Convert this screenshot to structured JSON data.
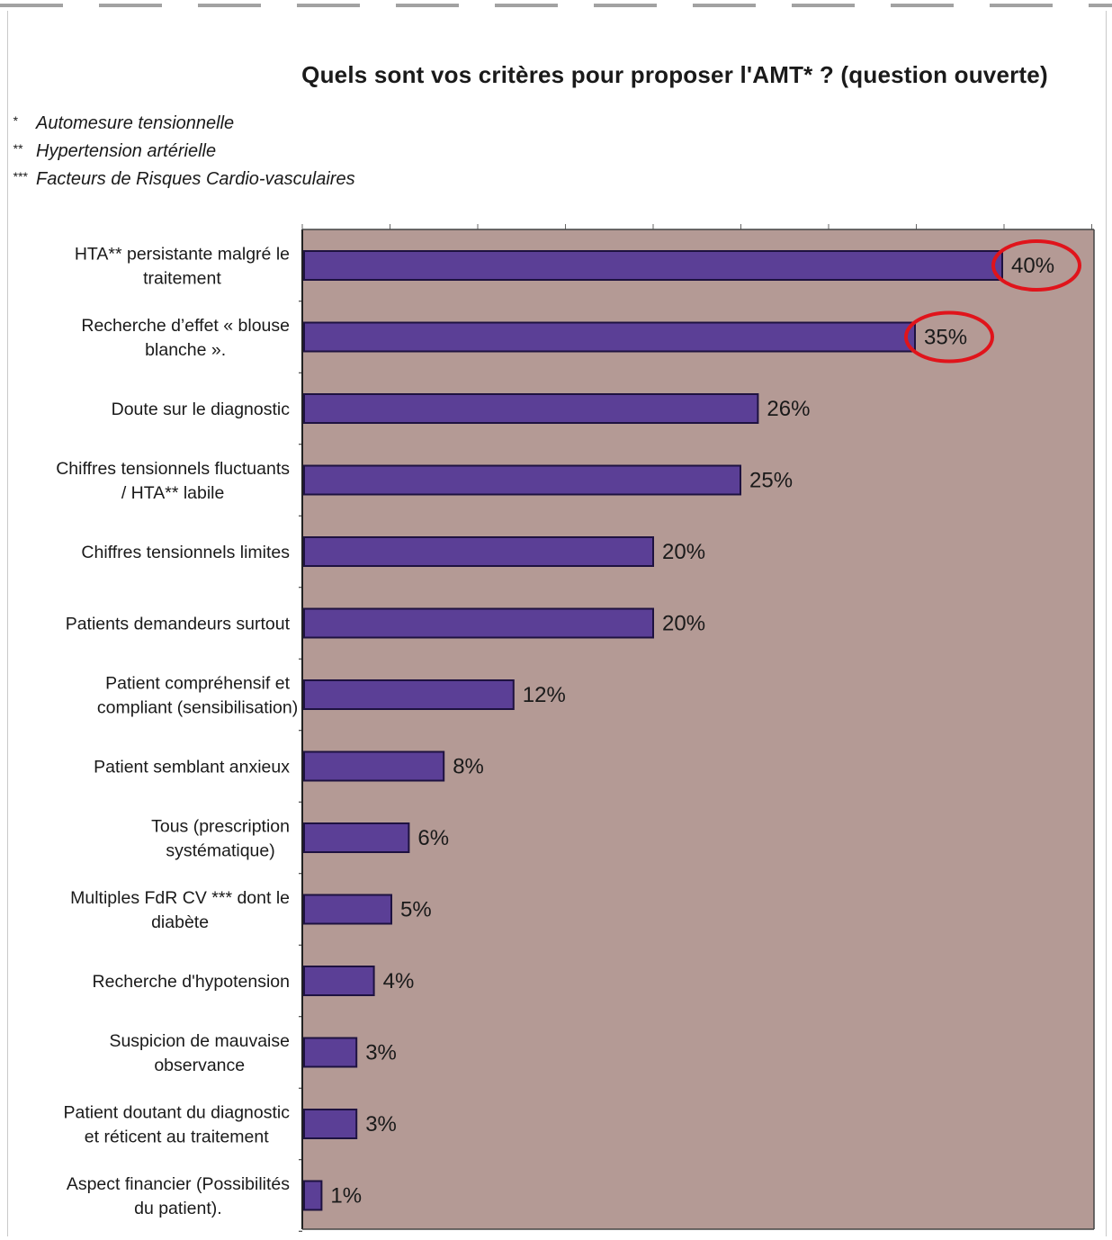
{
  "title": "Quels sont vos critères pour proposer l'AMT* ? (question ouverte)",
  "footnotes": [
    {
      "mark": "*",
      "text": "Automesure tensionnelle"
    },
    {
      "mark": "**",
      "text": "Hypertension artérielle"
    },
    {
      "mark": "***",
      "text": "Facteurs de Risques Cardio-vasculaires"
    }
  ],
  "colors": {
    "bar": "#5b3f96",
    "bar_edge": "#1e1240",
    "plot_background": "#b49a95",
    "highlight_circle": "#e0141b"
  },
  "chart_data": {
    "type": "bar",
    "orientation": "horizontal",
    "unit": "%",
    "xlim": [
      0,
      45
    ],
    "grid": false,
    "legend": "none",
    "categories": [
      [
        "HTA** persistante malgré le",
        "traitement"
      ],
      [
        "Recherche d’effet « blouse",
        "blanche »."
      ],
      [
        "Doute sur le diagnostic"
      ],
      [
        "Chiffres tensionnels fluctuants",
        "/ HTA** labile"
      ],
      [
        "Chiffres tensionnels limites"
      ],
      [
        "Patients demandeurs surtout"
      ],
      [
        "Patient compréhensif et",
        "compliant (sensibilisation)"
      ],
      [
        "Patient semblant anxieux"
      ],
      [
        "Tous (prescription",
        "systématique)"
      ],
      [
        "Multiples FdR CV *** dont le",
        "diabète"
      ],
      [
        "Recherche d'hypotension"
      ],
      [
        "Suspicion de mauvaise",
        "observance"
      ],
      [
        "Patient doutant du diagnostic",
        "et réticent au traitement"
      ],
      [
        "Aspect financier (Possibilités",
        "du patient)."
      ]
    ],
    "values": [
      40,
      35,
      26,
      25,
      20,
      20,
      12,
      8,
      6,
      5,
      4,
      3,
      3,
      1
    ],
    "data_labels": [
      "40%",
      "35%",
      "26%",
      "25%",
      "20%",
      "20%",
      "12%",
      "8%",
      "6%",
      "5%",
      "4%",
      "3%",
      "3%",
      "1%"
    ],
    "highlighted": [
      0,
      1
    ]
  }
}
